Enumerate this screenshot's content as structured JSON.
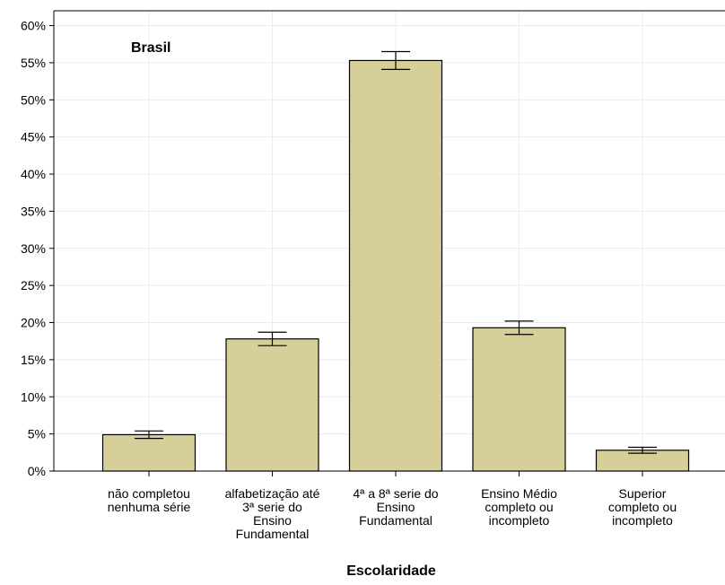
{
  "chart_data": {
    "type": "bar",
    "annotation": "Brasil",
    "xlabel": "Escolaridade",
    "ylabel": "",
    "ylim": [
      0,
      62
    ],
    "yticks": [
      "0%",
      "5%",
      "10%",
      "15%",
      "20%",
      "25%",
      "30%",
      "35%",
      "40%",
      "45%",
      "50%",
      "55%",
      "60%"
    ],
    "categories": [
      [
        "não completou",
        "nenhuma série"
      ],
      [
        "alfabetização até",
        "3ª serie do",
        "Ensino",
        "Fundamental"
      ],
      [
        "4ª a 8ª serie do",
        "Ensino",
        "Fundamental"
      ],
      [
        "Ensino Médio",
        "completo ou",
        "incompleto"
      ],
      [
        "Superior",
        "completo ou",
        "incompleto"
      ]
    ],
    "values": [
      4.9,
      17.8,
      55.3,
      19.3,
      2.8
    ],
    "error_low": [
      4.4,
      16.9,
      54.1,
      18.4,
      2.4
    ],
    "error_high": [
      5.4,
      18.7,
      56.5,
      20.2,
      3.2
    ],
    "bar_color": "#d6cf99",
    "grid": true
  }
}
